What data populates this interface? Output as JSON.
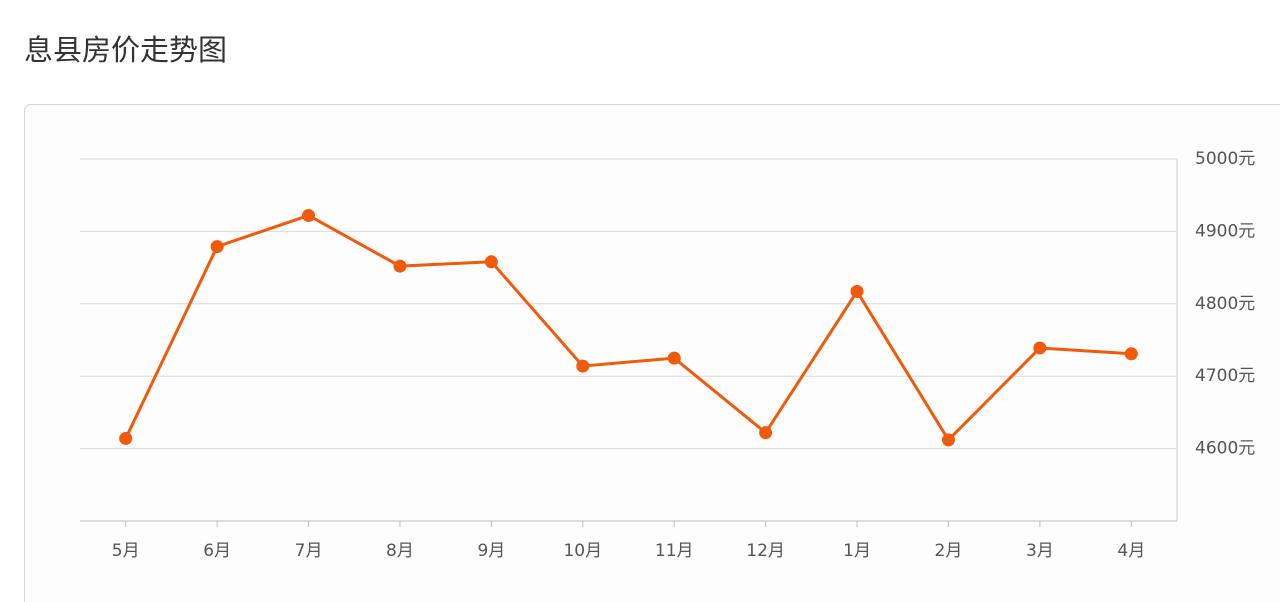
{
  "chart_data": {
    "type": "line",
    "title": "息县房价走势图",
    "categories": [
      "5月",
      "6月",
      "7月",
      "8月",
      "9月",
      "10月",
      "11月",
      "12月",
      "1月",
      "2月",
      "3月",
      "4月"
    ],
    "series": [
      {
        "name": "息县房价",
        "color": "#f05a0a",
        "values": [
          4614,
          4879,
          4922,
          4852,
          4858,
          4714,
          4725,
          4622,
          4817,
          4612,
          4739,
          4731
        ]
      }
    ],
    "ylim": [
      4500,
      5000
    ],
    "yticks": [
      {
        "value": 4600,
        "label": "4600元"
      },
      {
        "value": 4700,
        "label": "4700元"
      },
      {
        "value": 4800,
        "label": "4800元"
      },
      {
        "value": 4900,
        "label": "4900元"
      },
      {
        "value": 5000,
        "label": "5000元"
      }
    ],
    "grid": true,
    "yaxis_side": "right"
  }
}
